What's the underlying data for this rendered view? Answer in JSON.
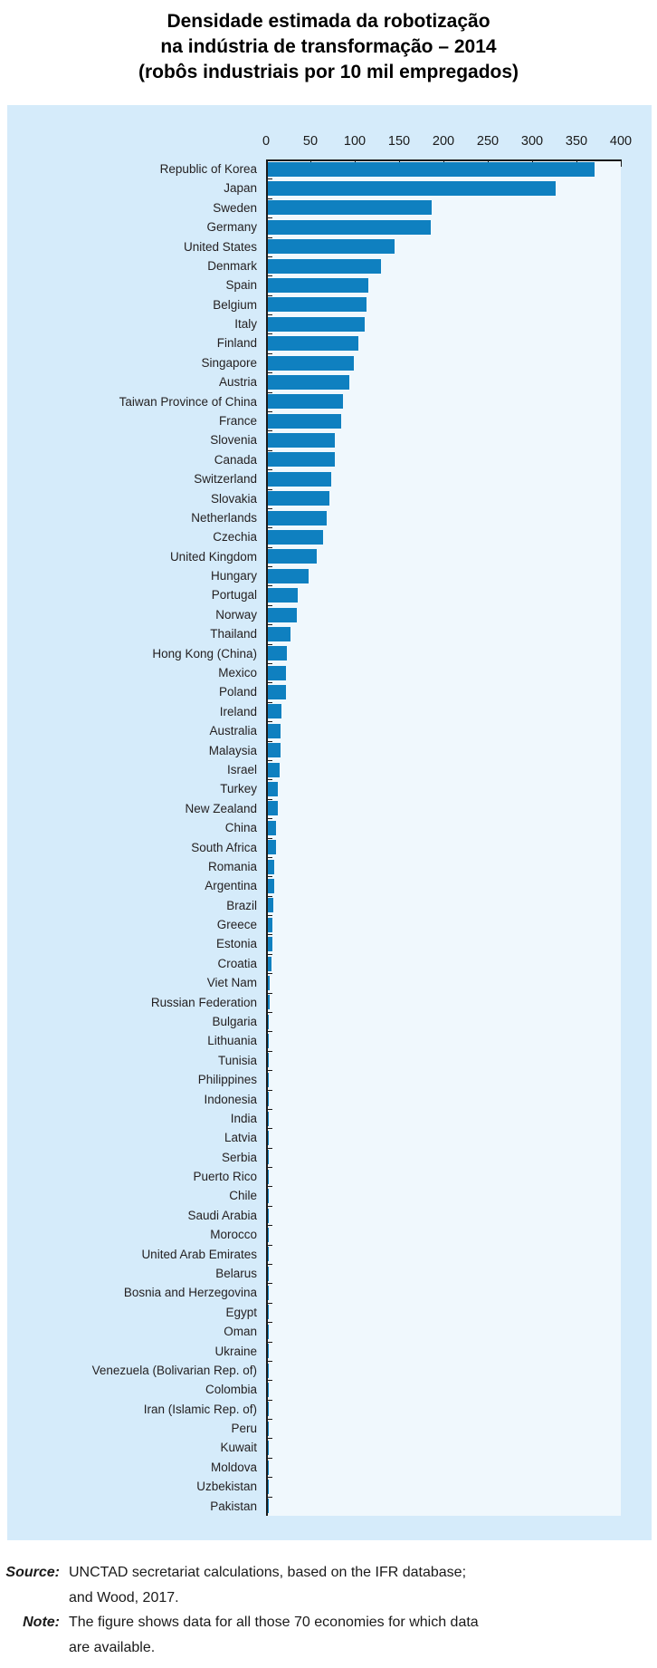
{
  "title": {
    "line1": "Densidade estimada da robotização",
    "line2": "na indústria de transformação – 2014",
    "line3": "(robôs industriais por 10 mil empregados)"
  },
  "chart_data": {
    "type": "bar",
    "orientation": "horizontal",
    "title": "Densidade estimada da robotização na indústria de transformação – 2014 (robôs industriais por 10 mil empregados)",
    "xlabel": "",
    "ylabel": "",
    "xlim": [
      0,
      400
    ],
    "x_ticks": [
      0,
      50,
      100,
      150,
      200,
      250,
      300,
      350,
      400
    ],
    "grid": false,
    "legend": "none",
    "bar_color": "#0f80c0",
    "panel_background": "#d5ebfa",
    "plot_background": "#f0f8fd",
    "categories": [
      "Republic of Korea",
      "Japan",
      "Sweden",
      "Germany",
      "United States",
      "Denmark",
      "Spain",
      "Belgium",
      "Italy",
      "Finland",
      "Singapore",
      "Austria",
      "Taiwan Province of China",
      "France",
      "Slovenia",
      "Canada",
      "Switzerland",
      "Slovakia",
      "Netherlands",
      "Czechia",
      "United Kingdom",
      "Hungary",
      "Portugal",
      "Norway",
      "Thailand",
      "Hong Kong (China)",
      "Mexico",
      "Poland",
      "Ireland",
      "Australia",
      "Malaysia",
      "Israel",
      "Turkey",
      "New Zealand",
      "China",
      "South Africa",
      "Romania",
      "Argentina",
      "Brazil",
      "Greece",
      "Estonia",
      "Croatia",
      "Viet Nam",
      "Russian Federation",
      "Bulgaria",
      "Lithuania",
      "Tunisia",
      "Philippines",
      "Indonesia",
      "India",
      "Latvia",
      "Serbia",
      "Puerto Rico",
      "Chile",
      "Saudi Arabia",
      "Morocco",
      "United Arab Emirates",
      "Belarus",
      "Bosnia and Herzegovina",
      "Egypt",
      "Oman",
      "Ukraine",
      "Venezuela (Bolivarian Rep. of)",
      "Colombia",
      "Iran (Islamic Rep. of)",
      "Peru",
      "Kuwait",
      "Moldova",
      "Uzbekistan",
      "Pakistan"
    ],
    "values": [
      368,
      324,
      185,
      184,
      143,
      128,
      113,
      111,
      109,
      102,
      97,
      92,
      85,
      83,
      76,
      75,
      71,
      69,
      66,
      62,
      55,
      46,
      33.5,
      33,
      25,
      21,
      20.5,
      20,
      15,
      14.5,
      14,
      13.5,
      11,
      11,
      9.5,
      9.4,
      7.4,
      7,
      6.5,
      5.2,
      4.8,
      4.3,
      2.2,
      1.8,
      1.4,
      1.2,
      1.1,
      1.0,
      0.9,
      0.8,
      0.75,
      0.7,
      0.6,
      0.55,
      0.5,
      0.45,
      0.4,
      0.35,
      0.3,
      0.28,
      0.25,
      0.22,
      0.2,
      0.18,
      0.15,
      0.12,
      0.1,
      0.08,
      0.06,
      0.05
    ]
  },
  "footer": {
    "source_label": "Source:",
    "source_line1": "UNCTAD secretariat calculations, based on the IFR database;",
    "source_line2": "and Wood, 2017.",
    "note_label": "Note:",
    "note_line1": "The figure shows data for all those 70 economies for which data",
    "note_line2": "are available."
  }
}
